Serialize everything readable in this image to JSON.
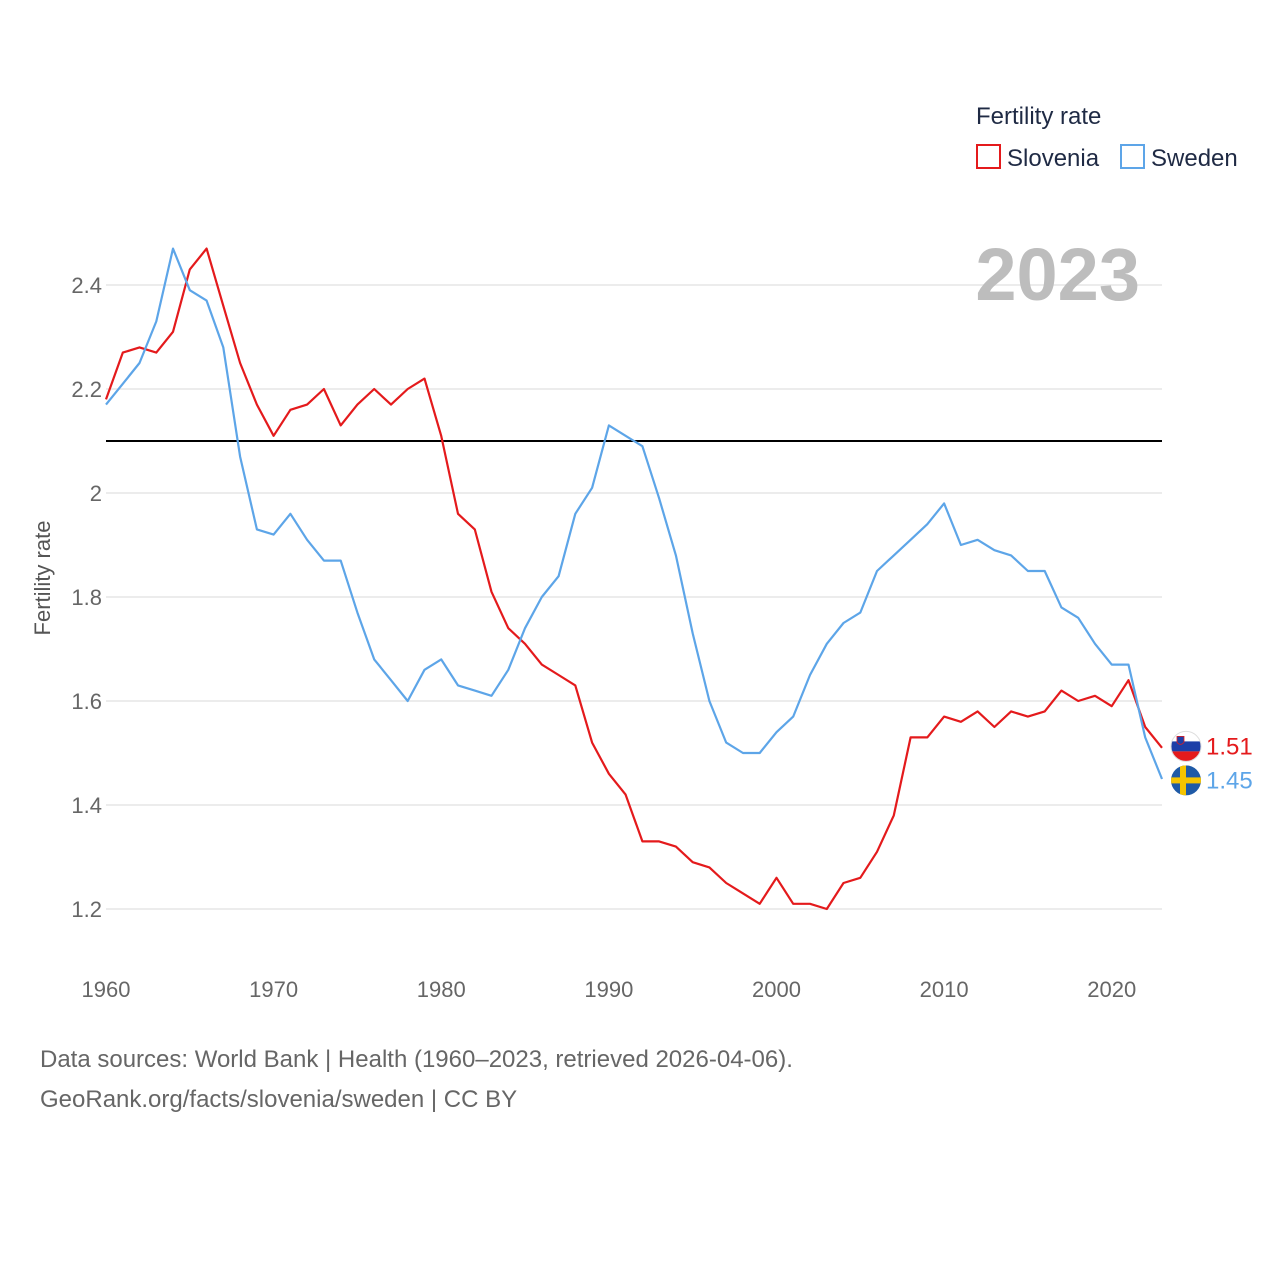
{
  "chart_data": {
    "type": "line",
    "title": "",
    "ylabel": "Fertility rate",
    "xlabel": "",
    "xlim": [
      1960,
      2023
    ],
    "ylim": [
      1.2,
      2.46
    ],
    "x_ticks": [
      1960,
      1970,
      1980,
      1990,
      2000,
      2010,
      2020
    ],
    "y_ticks": [
      1.2,
      1.4,
      1.6,
      1.8,
      2.0,
      2.2,
      2.4
    ],
    "y_tick_labels": [
      "1.2",
      "1.4",
      "1.6",
      "1.8",
      "2",
      "2.2",
      "2.4"
    ],
    "reference_line": 2.1,
    "year_label": "2023",
    "legend": {
      "title": "Fertility rate",
      "position": "top-right"
    },
    "x": [
      1960,
      1961,
      1962,
      1963,
      1964,
      1965,
      1966,
      1967,
      1968,
      1969,
      1970,
      1971,
      1972,
      1973,
      1974,
      1975,
      1976,
      1977,
      1978,
      1979,
      1980,
      1981,
      1982,
      1983,
      1984,
      1985,
      1986,
      1987,
      1988,
      1989,
      1990,
      1991,
      1992,
      1993,
      1994,
      1995,
      1996,
      1997,
      1998,
      1999,
      2000,
      2001,
      2002,
      2003,
      2004,
      2005,
      2006,
      2007,
      2008,
      2009,
      2010,
      2011,
      2012,
      2013,
      2014,
      2015,
      2016,
      2017,
      2018,
      2019,
      2020,
      2021,
      2022,
      2023
    ],
    "series": [
      {
        "name": "Slovenia",
        "color": "#e41a1c",
        "end_label": "1.51",
        "flag": "slovenia-flag",
        "values": [
          2.18,
          2.27,
          2.28,
          2.27,
          2.31,
          2.43,
          2.47,
          2.36,
          2.25,
          2.17,
          2.11,
          2.16,
          2.17,
          2.2,
          2.13,
          2.17,
          2.2,
          2.17,
          2.2,
          2.22,
          2.11,
          1.96,
          1.93,
          1.81,
          1.74,
          1.71,
          1.67,
          1.65,
          1.63,
          1.52,
          1.46,
          1.42,
          1.33,
          1.33,
          1.32,
          1.29,
          1.28,
          1.25,
          1.23,
          1.21,
          1.26,
          1.21,
          1.21,
          1.2,
          1.25,
          1.26,
          1.31,
          1.38,
          1.53,
          1.53,
          1.57,
          1.56,
          1.58,
          1.55,
          1.58,
          1.57,
          1.58,
          1.62,
          1.6,
          1.61,
          1.59,
          1.64,
          1.55,
          1.51
        ]
      },
      {
        "name": "Sweden",
        "color": "#5da5e8",
        "end_label": "1.45",
        "flag": "sweden-flag",
        "values": [
          2.17,
          2.21,
          2.25,
          2.33,
          2.47,
          2.39,
          2.37,
          2.28,
          2.07,
          1.93,
          1.92,
          1.96,
          1.91,
          1.87,
          1.87,
          1.77,
          1.68,
          1.64,
          1.6,
          1.66,
          1.68,
          1.63,
          1.62,
          1.61,
          1.66,
          1.74,
          1.8,
          1.84,
          1.96,
          2.01,
          2.13,
          2.11,
          2.09,
          1.99,
          1.88,
          1.73,
          1.6,
          1.52,
          1.5,
          1.5,
          1.54,
          1.57,
          1.65,
          1.71,
          1.75,
          1.77,
          1.85,
          1.88,
          1.91,
          1.94,
          1.98,
          1.9,
          1.91,
          1.89,
          1.88,
          1.85,
          1.85,
          1.78,
          1.76,
          1.71,
          1.67,
          1.67,
          1.53,
          1.45
        ]
      }
    ]
  },
  "source": {
    "line1": "Data sources: World Bank | Health (1960–2023, retrieved 2026-04-06).",
    "line2": "GeoRank.org/facts/slovenia/sweden | CC BY"
  }
}
